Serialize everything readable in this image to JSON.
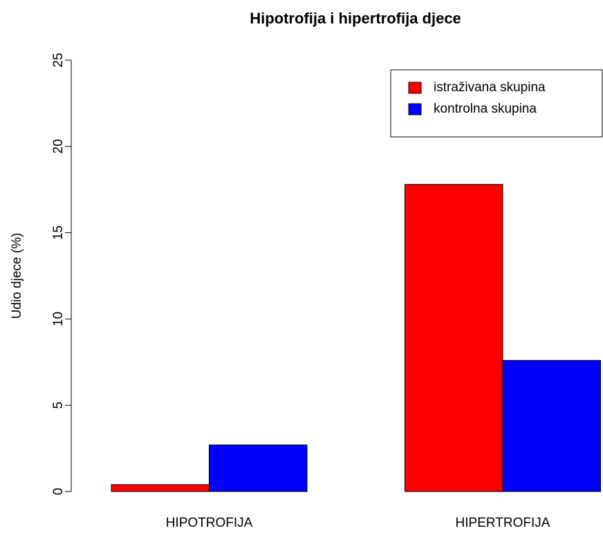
{
  "chart_data": {
    "type": "bar",
    "title": "Hipotrofija i hipertrofija djece",
    "ylabel": "Udio djece (%)",
    "categories": [
      "HIPOTROFIJA",
      "HIPERTROFIJA"
    ],
    "series": [
      {
        "name": "istraživana skupina",
        "color": "#ff0000",
        "values": [
          0.4,
          17.8
        ]
      },
      {
        "name": "kontrolna skupina",
        "color": "#0000ff",
        "values": [
          2.7,
          7.6
        ]
      }
    ],
    "ylim": [
      0,
      25
    ],
    "yticks": [
      0,
      5,
      10,
      15,
      20,
      25
    ],
    "legend": "topright"
  }
}
